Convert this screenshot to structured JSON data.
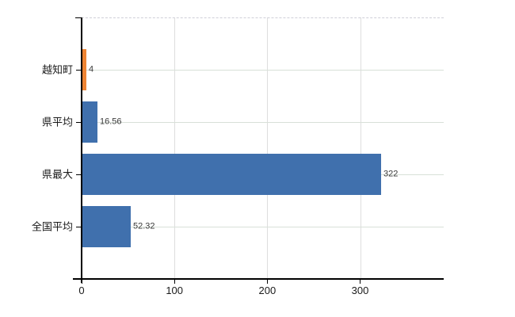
{
  "chart_data": {
    "type": "bar",
    "orientation": "horizontal",
    "title": "",
    "xlabel": "",
    "ylabel": "",
    "categories": [
      "越知町",
      "県平均",
      "県最大",
      "全国平均"
    ],
    "values": [
      4,
      16.56,
      322,
      52.32
    ],
    "value_labels": [
      "4",
      "16.56",
      "322",
      "52.32"
    ],
    "series": [
      {
        "name": "",
        "values": [
          4,
          16.56,
          322,
          52.32
        ],
        "colors": [
          "#ee8433",
          "#4070ad",
          "#4070ad",
          "#4070ad"
        ]
      }
    ],
    "x_ticks": [
      0,
      100,
      200,
      300
    ],
    "x_tick_labels": [
      "0",
      "100",
      "200",
      "300"
    ],
    "xlim": [
      0,
      390
    ],
    "grid": true,
    "legend_position": "none",
    "highlight_category": "越知町",
    "colors": {
      "highlight_bar": "#ee8433",
      "default_bar": "#4070ad",
      "axis": "#000000",
      "grid_horizontal": "#d8e0d8",
      "grid_vertical": "#dedede",
      "top_spine": "#cfcfd8",
      "value_text": "#3a3a3a",
      "label_text": "#1a1a1a",
      "background": "#ffffff"
    }
  }
}
